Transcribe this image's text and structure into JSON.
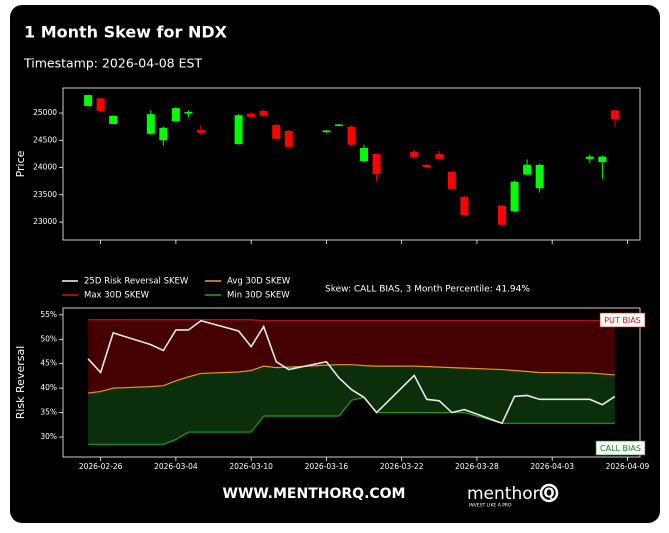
{
  "header": {
    "title": "1 Month Skew for NDX",
    "timestamp": "Timestamp: 2026-04-08 EST"
  },
  "chart_data": [
    {
      "type": "candlestick",
      "y_label": "Price",
      "x": [
        "2026-02-25",
        "2026-02-26",
        "2026-02-27",
        "2026-03-02",
        "2026-03-03",
        "2026-03-04",
        "2026-03-05",
        "2026-03-06",
        "2026-03-09",
        "2026-03-10",
        "2026-03-11",
        "2026-03-12",
        "2026-03-13",
        "2026-03-16",
        "2026-03-17",
        "2026-03-18",
        "2026-03-19",
        "2026-03-20",
        "2026-03-23",
        "2026-03-24",
        "2026-03-25",
        "2026-03-26",
        "2026-03-27",
        "2026-03-30",
        "2026-03-31",
        "2026-04-01",
        "2026-04-02",
        "2026-04-06",
        "2026-04-07",
        "2026-04-08"
      ],
      "open": [
        25130,
        25270,
        24800,
        24620,
        24500,
        24850,
        24990,
        24690,
        24430,
        24990,
        25040,
        24780,
        24670,
        24650,
        24770,
        24750,
        24120,
        24250,
        24290,
        24050,
        24250,
        23920,
        23460,
        23300,
        23200,
        23870,
        23620,
        24160,
        24100,
        25050
      ],
      "high": [
        25340,
        25280,
        24960,
        25050,
        24750,
        25110,
        25050,
        24780,
        24980,
        25020,
        25060,
        24800,
        24690,
        24690,
        24800,
        24770,
        24420,
        24260,
        24320,
        24070,
        24300,
        23940,
        23480,
        23320,
        23760,
        24150,
        24070,
        24240,
        24220,
        25060
      ],
      "low": [
        25120,
        25020,
        24790,
        24600,
        24400,
        24840,
        24920,
        24600,
        24420,
        24920,
        24930,
        24510,
        24360,
        24640,
        24760,
        24400,
        24100,
        23750,
        24170,
        23990,
        24150,
        23600,
        23100,
        22930,
        23180,
        23860,
        23540,
        24080,
        23800,
        24760
      ],
      "close": [
        25330,
        25040,
        24950,
        24980,
        24730,
        25090,
        25020,
        24640,
        24960,
        24930,
        24950,
        24530,
        24380,
        24680,
        24790,
        24420,
        24360,
        23880,
        24190,
        24010,
        24160,
        23610,
        23130,
        22950,
        23740,
        24050,
        24050,
        24200,
        24200,
        24890
      ],
      "up_color": "#00ff00",
      "down_color": "#ff0000",
      "xlim": [
        "2026-02-23",
        "2026-04-10"
      ],
      "xticks": [
        "2026-02-26",
        "2026-03-04",
        "2026-03-10",
        "2026-03-16",
        "2026-03-22",
        "2026-03-28",
        "2026-04-03",
        "2026-04-09"
      ],
      "ylim": [
        22670,
        25460
      ],
      "yticks": [
        23000,
        23500,
        24000,
        24500,
        25000
      ]
    },
    {
      "type": "line",
      "y_label": "Risk Reversal",
      "x": [
        "2026-02-25",
        "2026-02-26",
        "2026-02-27",
        "2026-03-02",
        "2026-03-03",
        "2026-03-04",
        "2026-03-05",
        "2026-03-06",
        "2026-03-09",
        "2026-03-10",
        "2026-03-11",
        "2026-03-12",
        "2026-03-13",
        "2026-03-16",
        "2026-03-17",
        "2026-03-18",
        "2026-03-19",
        "2026-03-20",
        "2026-03-23",
        "2026-03-24",
        "2026-03-25",
        "2026-03-26",
        "2026-03-27",
        "2026-03-30",
        "2026-03-31",
        "2026-04-01",
        "2026-04-02",
        "2026-04-06",
        "2026-04-07",
        "2026-04-08"
      ],
      "series": [
        {
          "name": "25D Risk Reversal SKEW",
          "color": "#e8e8e8",
          "values": [
            46.0,
            43.2,
            51.3,
            48.9,
            47.7,
            51.9,
            51.9,
            53.8,
            51.7,
            48.5,
            52.6,
            45.4,
            43.8,
            45.4,
            42.1,
            39.7,
            38.1,
            35.0,
            42.6,
            37.7,
            37.4,
            35.0,
            35.6,
            32.8,
            38.3,
            38.5,
            37.7,
            37.7,
            36.6,
            38.3
          ]
        },
        {
          "name": "Avg 30D SKEW",
          "color": "#e0962a",
          "values": [
            39.0,
            39.3,
            40.0,
            40.3,
            40.5,
            41.5,
            42.3,
            43.0,
            43.3,
            43.6,
            44.5,
            44.2,
            44.3,
            44.7,
            44.8,
            44.8,
            44.6,
            44.5,
            44.5,
            44.4,
            44.3,
            44.2,
            44.1,
            43.8,
            43.6,
            43.4,
            43.2,
            43.1,
            42.9,
            42.7
          ]
        },
        {
          "name": "Max 30D SKEW",
          "color": "#cc1111",
          "values": [
            54.0,
            54.0,
            54.0,
            54.0,
            54.0,
            54.0,
            54.0,
            54.0,
            54.0,
            54.0,
            53.8,
            53.8,
            53.8,
            53.8,
            53.8,
            53.8,
            53.8,
            53.8,
            53.8,
            53.8,
            53.8,
            53.8,
            53.8,
            53.8,
            53.8,
            53.8,
            53.8,
            53.8,
            53.8,
            53.8
          ]
        },
        {
          "name": "Min 30D SKEW",
          "color": "#1f9a1f",
          "values": [
            28.5,
            28.5,
            28.5,
            28.5,
            28.5,
            29.5,
            31.0,
            31.0,
            31.0,
            31.0,
            34.3,
            34.3,
            34.3,
            34.3,
            34.3,
            37.5,
            38.1,
            35.0,
            35.0,
            35.0,
            35.0,
            35.0,
            35.0,
            32.8,
            32.8,
            32.8,
            32.8,
            32.8,
            32.8,
            32.8
          ]
        }
      ],
      "put_fill": "#4d0000",
      "call_fill": "#0c340c",
      "annotation": "Skew: CALL BIAS, 3 Month Percentile: 41.94%",
      "bias_labels": [
        {
          "text": "PUT BIAS",
          "color": "#e01010"
        },
        {
          "text": "CALL BIAS",
          "color": "#108a10"
        }
      ],
      "xlim": [
        "2026-02-23",
        "2026-04-10"
      ],
      "xticks": [
        "2026-02-26",
        "2026-03-04",
        "2026-03-10",
        "2026-03-16",
        "2026-03-22",
        "2026-03-28",
        "2026-04-03",
        "2026-04-09"
      ],
      "ylim": [
        25.9,
        56.4
      ],
      "yticks": [
        {
          "value": 30,
          "label": "30%"
        },
        {
          "value": 35,
          "label": "35%"
        },
        {
          "value": 40,
          "label": "40%"
        },
        {
          "value": 45,
          "label": "45%"
        },
        {
          "value": 50,
          "label": "50%"
        },
        {
          "value": 55,
          "label": "55%"
        }
      ]
    }
  ],
  "footer": {
    "site": "WWW.MENTHORQ.COM",
    "logo": "menthor",
    "logo_mark": "Q",
    "tagline": "INVEST LIKE A PRO"
  }
}
